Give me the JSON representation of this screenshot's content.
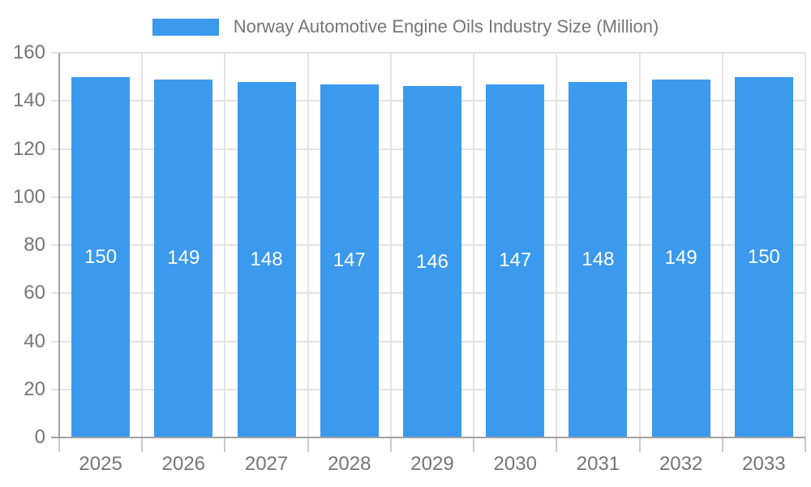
{
  "legend": {
    "label": "Norway Automotive Engine Oils Industry Size (Million)"
  },
  "chart_data": {
    "type": "bar",
    "title": "Norway Automotive Engine Oils Industry Size (Million)",
    "categories": [
      "2025",
      "2026",
      "2027",
      "2028",
      "2029",
      "2030",
      "2031",
      "2032",
      "2033"
    ],
    "values": [
      150,
      149,
      148,
      147,
      146,
      147,
      148,
      149,
      150
    ],
    "xlabel": "",
    "ylabel": "",
    "ylim": [
      0,
      160
    ],
    "ytick_step": 20,
    "ytick_labels": [
      "0",
      "20",
      "40",
      "60",
      "80",
      "100",
      "120",
      "140",
      "160"
    ],
    "grid": true,
    "legend_position": "top",
    "bar_value_labels_shown": true
  },
  "colors": {
    "bar": "#3b99ee",
    "bar_value_label": "#ffffff",
    "gridline": "#e3e3e3",
    "axis_line": "#a2a2a2",
    "category_tick": "#c9c9c9",
    "axis_text": "#757575",
    "legend_text": "#757575",
    "background": "#ffffff"
  }
}
